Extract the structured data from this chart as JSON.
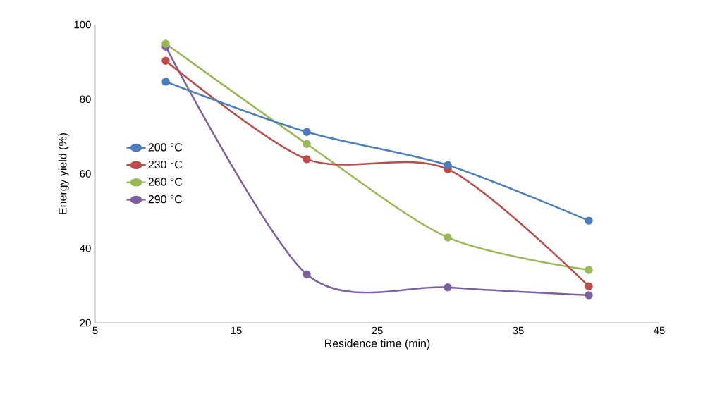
{
  "chart_data": {
    "type": "line",
    "xlabel": "Residence time (min)",
    "ylabel": "Energy yield (%)",
    "x": [
      10,
      20,
      30,
      40
    ],
    "series": [
      {
        "name": "200 °C",
        "color": "#4a7ebb",
        "values": [
          84.7,
          71.2,
          62.3,
          47.4
        ]
      },
      {
        "name": "230 °C",
        "color": "#be4b48",
        "values": [
          90.3,
          63.9,
          61.2,
          29.8
        ]
      },
      {
        "name": "260 °C",
        "color": "#98b954",
        "values": [
          94.9,
          68.0,
          42.9,
          34.2
        ]
      },
      {
        "name": "290 °C",
        "color": "#7d60a0",
        "values": [
          94.1,
          33.0,
          29.5,
          27.4
        ]
      }
    ],
    "xlim": [
      5,
      45
    ],
    "xticks": [
      5,
      15,
      25,
      35,
      45
    ],
    "ylim": [
      20,
      100
    ],
    "yticks": [
      20,
      40,
      60,
      80,
      100
    ],
    "grid": false,
    "legend": "left",
    "marker": "circle",
    "line_style": "solid"
  }
}
